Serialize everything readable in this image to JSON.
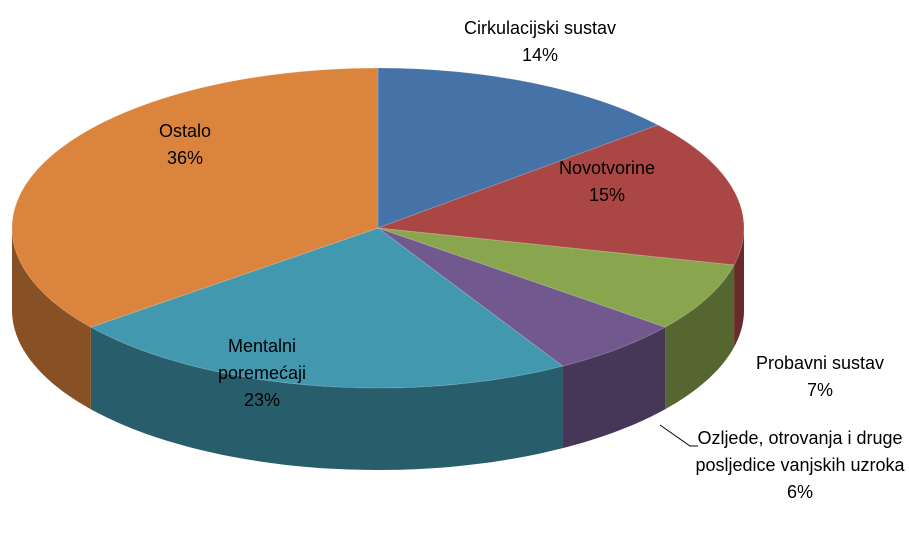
{
  "chart_data": {
    "type": "pie",
    "categories": [
      "Cirkulacijski sustav",
      "Novotvorine",
      "Probavni sustav",
      "Ozljede, otrovanja i druge posljedice vanjskih uzroka",
      "Mentalni poremećaji",
      "Ostalo"
    ],
    "values": [
      14,
      15,
      7,
      6,
      23,
      36
    ],
    "value_labels": [
      "14%",
      "15%",
      "7%",
      "6%",
      "23%",
      "36%"
    ],
    "colors": [
      "#4572a7",
      "#aa4643",
      "#89a54e",
      "#71588f",
      "#4198af",
      "#db843d"
    ]
  }
}
